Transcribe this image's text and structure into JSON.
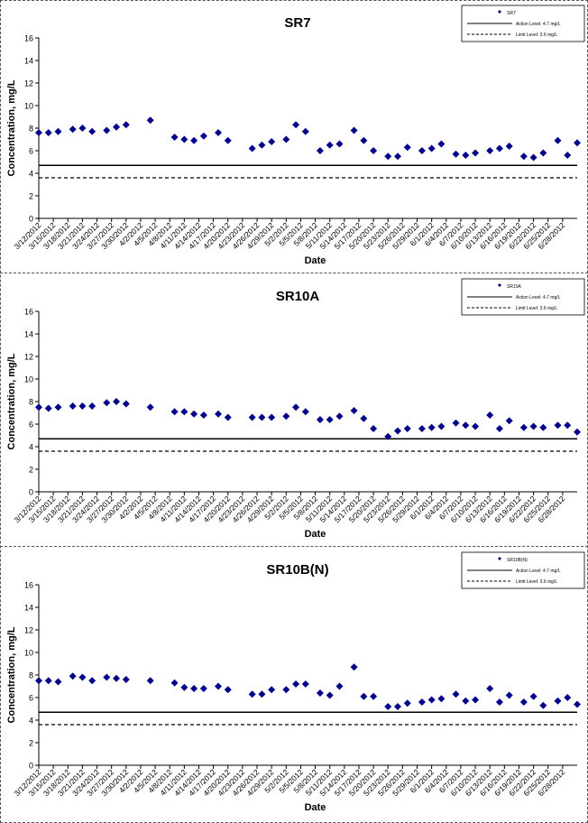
{
  "chart_data": [
    {
      "type": "scatter",
      "title": "SR7",
      "xlabel": "Date",
      "ylabel": "Concentration, mg/L",
      "ylim": [
        0,
        16
      ],
      "yticks": [
        0,
        2,
        4,
        6,
        8,
        10,
        12,
        14,
        16
      ],
      "xlim": [
        "3/12/2012",
        "7/1/2012"
      ],
      "xticks": [
        "3/12/2012",
        "3/15/2012",
        "3/18/2012",
        "3/21/2012",
        "3/24/2012",
        "3/27/2012",
        "3/30/2012",
        "4/2/2012",
        "4/5/2012",
        "4/8/2012",
        "4/11/2012",
        "4/14/2012",
        "4/17/2012",
        "4/20/2012",
        "4/23/2012",
        "4/26/2012",
        "4/29/2012",
        "5/2/2012",
        "5/5/2012",
        "5/8/2012",
        "5/11/2012",
        "5/14/2012",
        "5/17/2012",
        "5/20/2012",
        "5/23/2012",
        "5/26/2012",
        "5/29/2012",
        "6/1/2012",
        "6/4/2012",
        "6/7/2012",
        "6/10/2012",
        "6/13/2012",
        "6/16/2012",
        "6/19/2012",
        "6/22/2012",
        "6/25/2012",
        "6/28/2012"
      ],
      "legend": {
        "position": "top-right",
        "entries": [
          "SR7",
          "Action Level: 4.7 mg/L",
          "Limit Level: 3.6 mg/L"
        ]
      },
      "reference_lines": [
        {
          "name": "Action Level: 4.7 mg/L",
          "y": 4.7,
          "style": "solid"
        },
        {
          "name": "Limit Level: 3.6 mg/L",
          "y": 3.6,
          "style": "dashed"
        }
      ],
      "series": [
        {
          "name": "SR7",
          "marker": "diamond",
          "color": "#00008B",
          "x": [
            "3/12/2012",
            "3/14/2012",
            "3/16/2012",
            "3/19/2012",
            "3/21/2012",
            "3/23/2012",
            "3/26/2012",
            "3/28/2012",
            "3/30/2012",
            "4/4/2012",
            "4/9/2012",
            "4/11/2012",
            "4/13/2012",
            "4/15/2012",
            "4/18/2012",
            "4/20/2012",
            "4/25/2012",
            "4/27/2012",
            "4/29/2012",
            "5/2/2012",
            "5/4/2012",
            "5/6/2012",
            "5/9/2012",
            "5/11/2012",
            "5/13/2012",
            "5/16/2012",
            "5/18/2012",
            "5/20/2012",
            "5/23/2012",
            "5/25/2012",
            "5/27/2012",
            "5/30/2012",
            "6/1/2012",
            "6/3/2012",
            "6/6/2012",
            "6/8/2012",
            "6/10/2012",
            "6/13/2012",
            "6/15/2012",
            "6/17/2012",
            "6/20/2012",
            "6/22/2012",
            "6/24/2012",
            "6/27/2012",
            "6/29/2012",
            "7/1/2012"
          ],
          "y": [
            7.6,
            7.6,
            7.7,
            7.9,
            8.0,
            7.7,
            7.8,
            8.1,
            8.3,
            8.7,
            7.2,
            7.0,
            6.9,
            7.3,
            7.6,
            6.9,
            6.2,
            6.5,
            6.8,
            7.0,
            8.3,
            7.7,
            6.0,
            6.5,
            6.6,
            7.8,
            6.9,
            6.0,
            5.5,
            5.5,
            6.3,
            6.0,
            6.2,
            6.6,
            5.7,
            5.6,
            5.8,
            6.0,
            6.2,
            6.4,
            5.5,
            5.4,
            5.8,
            6.9,
            5.6,
            6.7
          ]
        }
      ]
    },
    {
      "type": "scatter",
      "title": "SR10A",
      "xlabel": "Date",
      "ylabel": "Concentration, mg/L",
      "ylim": [
        0,
        16
      ],
      "yticks": [
        0,
        2,
        4,
        6,
        8,
        10,
        12,
        14,
        16
      ],
      "xlim": [
        "3/12/2012",
        "7/1/2012"
      ],
      "xticks": [
        "3/12/2012",
        "3/15/2012",
        "3/18/2012",
        "3/21/2012",
        "3/24/2012",
        "3/27/2012",
        "3/30/2012",
        "4/2/2012",
        "4/5/2012",
        "4/8/2012",
        "4/11/2012",
        "4/14/2012",
        "4/17/2012",
        "4/20/2012",
        "4/23/2012",
        "4/26/2012",
        "4/29/2012",
        "5/2/2012",
        "5/5/2012",
        "5/8/2012",
        "5/11/2012",
        "5/14/2012",
        "5/17/2012",
        "5/20/2012",
        "5/23/2012",
        "5/26/2012",
        "5/29/2012",
        "6/1/2012",
        "6/4/2012",
        "6/7/2012",
        "6/10/2012",
        "6/13/2012",
        "6/16/2012",
        "6/19/2012",
        "6/22/2012",
        "6/25/2012",
        "6/28/2012"
      ],
      "legend": {
        "position": "top-right",
        "entries": [
          "SR10A",
          "Action Level: 4.7 mg/L",
          "Limit Level: 3.6 mg/L"
        ]
      },
      "reference_lines": [
        {
          "name": "Action Level: 4.7 mg/L",
          "y": 4.7,
          "style": "solid"
        },
        {
          "name": "Limit Level: 3.6 mg/L",
          "y": 3.6,
          "style": "dashed"
        }
      ],
      "series": [
        {
          "name": "SR10A",
          "marker": "diamond",
          "color": "#00008B",
          "x": [
            "3/12/2012",
            "3/14/2012",
            "3/16/2012",
            "3/19/2012",
            "3/21/2012",
            "3/23/2012",
            "3/26/2012",
            "3/28/2012",
            "3/30/2012",
            "4/4/2012",
            "4/9/2012",
            "4/11/2012",
            "4/13/2012",
            "4/15/2012",
            "4/18/2012",
            "4/20/2012",
            "4/25/2012",
            "4/27/2012",
            "4/29/2012",
            "5/2/2012",
            "5/4/2012",
            "5/6/2012",
            "5/9/2012",
            "5/11/2012",
            "5/13/2012",
            "5/16/2012",
            "5/18/2012",
            "5/20/2012",
            "5/23/2012",
            "5/25/2012",
            "5/27/2012",
            "5/30/2012",
            "6/1/2012",
            "6/3/2012",
            "6/6/2012",
            "6/8/2012",
            "6/10/2012",
            "6/13/2012",
            "6/15/2012",
            "6/17/2012",
            "6/20/2012",
            "6/22/2012",
            "6/24/2012",
            "6/27/2012",
            "6/29/2012",
            "7/1/2012"
          ],
          "y": [
            7.5,
            7.4,
            7.5,
            7.6,
            7.6,
            7.6,
            7.9,
            8.0,
            7.8,
            7.5,
            7.1,
            7.1,
            6.9,
            6.8,
            6.9,
            6.6,
            6.6,
            6.6,
            6.6,
            6.7,
            7.5,
            7.1,
            6.4,
            6.4,
            6.7,
            7.2,
            6.5,
            5.6,
            4.9,
            5.4,
            5.6,
            5.6,
            5.7,
            5.8,
            6.1,
            5.9,
            5.8,
            6.8,
            5.6,
            6.3,
            5.7,
            5.8,
            5.7,
            5.9,
            5.9,
            5.3
          ]
        }
      ]
    },
    {
      "type": "scatter",
      "title": "SR10B(N)",
      "xlabel": "Date",
      "ylabel": "Concentration, mg/L",
      "ylim": [
        0,
        16
      ],
      "yticks": [
        0,
        2,
        4,
        6,
        8,
        10,
        12,
        14,
        16
      ],
      "xlim": [
        "3/12/2012",
        "7/1/2012"
      ],
      "xticks": [
        "3/12/2012",
        "3/15/2012",
        "3/18/2012",
        "3/21/2012",
        "3/24/2012",
        "3/27/2012",
        "3/30/2012",
        "4/2/2012",
        "4/5/2012",
        "4/8/2012",
        "4/11/2012",
        "4/14/2012",
        "4/17/2012",
        "4/20/2012",
        "4/23/2012",
        "4/26/2012",
        "4/29/2012",
        "5/2/2012",
        "5/5/2012",
        "5/8/2012",
        "5/11/2012",
        "5/14/2012",
        "5/17/2012",
        "5/20/2012",
        "5/23/2012",
        "5/26/2012",
        "5/29/2012",
        "6/1/2012",
        "6/4/2012",
        "6/7/2012",
        "6/10/2012",
        "6/13/2012",
        "6/16/2012",
        "6/19/2012",
        "6/22/2012",
        "6/25/2012",
        "6/28/2012"
      ],
      "legend": {
        "position": "top-right",
        "entries": [
          "SR10B(N)",
          "Action Level: 4.7 mg/L",
          "Limit Level: 3.6 mg/L"
        ]
      },
      "reference_lines": [
        {
          "name": "Action Level: 4.7 mg/L",
          "y": 4.7,
          "style": "solid"
        },
        {
          "name": "Limit Level: 3.6 mg/L",
          "y": 3.6,
          "style": "dashed"
        }
      ],
      "series": [
        {
          "name": "SR10B(N)",
          "marker": "diamond",
          "color": "#00008B",
          "x": [
            "3/12/2012",
            "3/14/2012",
            "3/16/2012",
            "3/19/2012",
            "3/21/2012",
            "3/23/2012",
            "3/26/2012",
            "3/28/2012",
            "3/30/2012",
            "4/4/2012",
            "4/9/2012",
            "4/11/2012",
            "4/13/2012",
            "4/15/2012",
            "4/18/2012",
            "4/20/2012",
            "4/25/2012",
            "4/27/2012",
            "4/29/2012",
            "5/2/2012",
            "5/4/2012",
            "5/6/2012",
            "5/9/2012",
            "5/11/2012",
            "5/13/2012",
            "5/16/2012",
            "5/18/2012",
            "5/20/2012",
            "5/23/2012",
            "5/25/2012",
            "5/27/2012",
            "5/30/2012",
            "6/1/2012",
            "6/3/2012",
            "6/6/2012",
            "6/8/2012",
            "6/10/2012",
            "6/13/2012",
            "6/15/2012",
            "6/17/2012",
            "6/20/2012",
            "6/22/2012",
            "6/24/2012",
            "6/27/2012",
            "6/29/2012",
            "7/1/2012"
          ],
          "y": [
            7.5,
            7.5,
            7.4,
            7.9,
            7.8,
            7.5,
            7.8,
            7.7,
            7.6,
            7.5,
            7.3,
            6.9,
            6.8,
            6.8,
            7.0,
            6.7,
            6.3,
            6.3,
            6.7,
            6.7,
            7.2,
            7.2,
            6.4,
            6.2,
            7.0,
            8.7,
            6.1,
            6.1,
            5.2,
            5.2,
            5.5,
            5.6,
            5.8,
            5.9,
            6.3,
            5.7,
            5.8,
            6.8,
            5.6,
            6.2,
            5.6,
            6.1,
            5.3,
            5.7,
            6.0,
            5.4
          ]
        }
      ]
    }
  ],
  "colors": {
    "marker": "#00008B",
    "axis": "#000000",
    "frame": "#555555"
  }
}
